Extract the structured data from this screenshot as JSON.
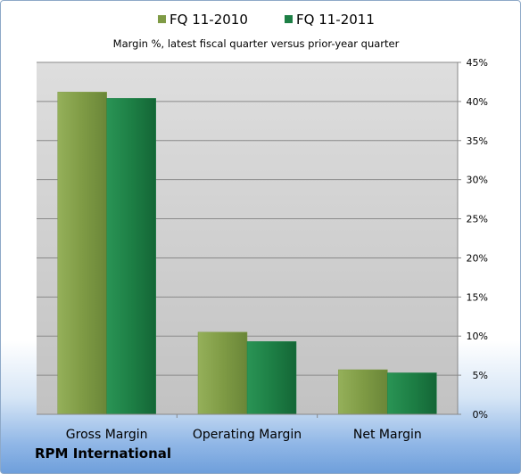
{
  "chart_data": {
    "type": "bar",
    "subtitle": "Margin %,  latest fiscal quarter versus prior-year quarter",
    "categories": [
      "Gross Margin",
      "Operating Margin",
      "Net Margin"
    ],
    "series": [
      {
        "name": "FQ 11-2010",
        "values": [
          41.2,
          10.5,
          5.7
        ],
        "color": "#7f9b45"
      },
      {
        "name": "FQ 11-2011",
        "values": [
          40.4,
          9.3,
          5.3
        ],
        "color": "#1d7f45"
      }
    ],
    "ylim": [
      0,
      45
    ],
    "y_ticks": [
      "0%",
      "5%",
      "10%",
      "15%",
      "20%",
      "25%",
      "30%",
      "35%",
      "40%",
      "45%"
    ],
    "y_axis_side": "right",
    "grid": true,
    "legend_position": "top"
  },
  "company": "RPM International"
}
